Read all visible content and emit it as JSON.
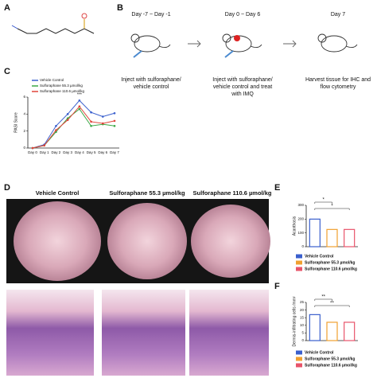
{
  "panels": [
    "A",
    "B",
    "C",
    "D",
    "E",
    "F"
  ],
  "timeline": {
    "steps": [
      {
        "title": "Day -7 ~ Day -1",
        "caption": [
          "Inject with sulforaphane/",
          "vehicle control"
        ]
      },
      {
        "title": "Day 0 ~ Day 6",
        "caption": [
          "Inject with sulforaphane/",
          "vehicle control and treat",
          "with IMQ"
        ]
      },
      {
        "title": "Day 7",
        "caption": [
          "Harvest tissue for IHC and",
          "flow cytometry"
        ]
      }
    ]
  },
  "images": {
    "columns": [
      "Vehicle Control",
      "Sulforaphane 55.3 µmol/kg",
      "Sulforaphane 110.6 µmol/kg"
    ]
  },
  "chart_data": [
    {
      "type": "line",
      "ylabel": "PASI Score",
      "categories": [
        "Day 0",
        "Day 1",
        "Day 2",
        "Day 3",
        "Day 4",
        "Day 5",
        "Day 6",
        "Day 7"
      ],
      "series": [
        {
          "name": "Vehicle Control",
          "color": "#3a5fcd",
          "values": [
            0,
            0.4,
            2.6,
            4.0,
            5.6,
            4.2,
            3.7,
            4.1
          ]
        },
        {
          "name": "Sulforaphane 55.3 µmol/kg",
          "color": "#3aa845",
          "values": [
            0,
            0.3,
            1.9,
            3.5,
            4.6,
            2.6,
            2.8,
            2.6
          ]
        },
        {
          "name": "Sulforaphane 110.6 µmol/kg",
          "color": "#e0443a",
          "values": [
            0,
            0.3,
            2.1,
            3.3,
            4.9,
            3.1,
            2.9,
            3.2
          ]
        }
      ],
      "ylim": [
        0,
        6
      ],
      "yticks": [
        0,
        2,
        4,
        6
      ],
      "annotation": "***"
    },
    {
      "type": "bar",
      "ylabel": "Acanthosis",
      "categories": [
        "Vehicle Control",
        "Sulforaphane 55.3 µmol/kg",
        "Sulforaphane 110.6 µmol/kg"
      ],
      "colors": [
        "#3a5fcd",
        "#f0a030",
        "#e8546a"
      ],
      "values": [
        200,
        125,
        125
      ],
      "ylim": [
        0,
        300
      ],
      "yticks": [
        0,
        100,
        200,
        300
      ],
      "annotations": [
        "*",
        "*"
      ]
    },
    {
      "type": "bar",
      "ylabel": "Dermis-infiltrating cells /mm²",
      "categories": [
        "Vehicle Control",
        "Sulforaphane 55.3 µmol/kg",
        "Sulforaphane 110.6 µmol/kg"
      ],
      "colors": [
        "#3a5fcd",
        "#f0a030",
        "#e8546a"
      ],
      "values": [
        17,
        12,
        12
      ],
      "ylim": [
        0,
        25
      ],
      "yticks": [
        0,
        5,
        10,
        15,
        20,
        25
      ],
      "annotations": [
        "**",
        "**"
      ]
    }
  ]
}
